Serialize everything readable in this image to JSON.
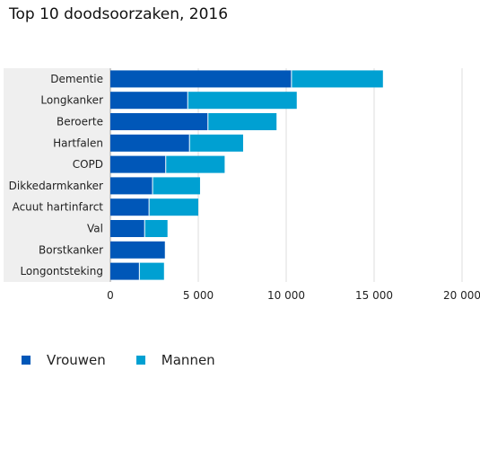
{
  "chart_data": {
    "type": "bar",
    "orientation": "horizontal",
    "stacked": true,
    "title": "Top 10 doodsoorzaken, 2016",
    "categories": [
      "Dementie",
      "Longkanker",
      "Beroerte",
      "Hartfalen",
      "COPD",
      "Dikkedarmkanker",
      "Acuut hartinfarct",
      "Val",
      "Borstkanker",
      "Longontsteking"
    ],
    "series": [
      {
        "name": "Vrouwen",
        "color": "#0057b8",
        "values": [
          10300,
          4400,
          5550,
          4500,
          3150,
          2400,
          2200,
          1950,
          3100,
          1650
        ]
      },
      {
        "name": "Mannen",
        "color": "#00a0d2",
        "values": [
          5200,
          6200,
          3900,
          3050,
          3350,
          2700,
          2800,
          1300,
          0,
          1400
        ]
      }
    ],
    "xlim": [
      0,
      20000
    ],
    "xticks": [
      0,
      5000,
      10000,
      15000,
      20000
    ],
    "xtick_labels": [
      "0",
      "5 000",
      "10 000",
      "15 000",
      "20 000"
    ],
    "grid": true,
    "legend_position": "bottom-left"
  }
}
